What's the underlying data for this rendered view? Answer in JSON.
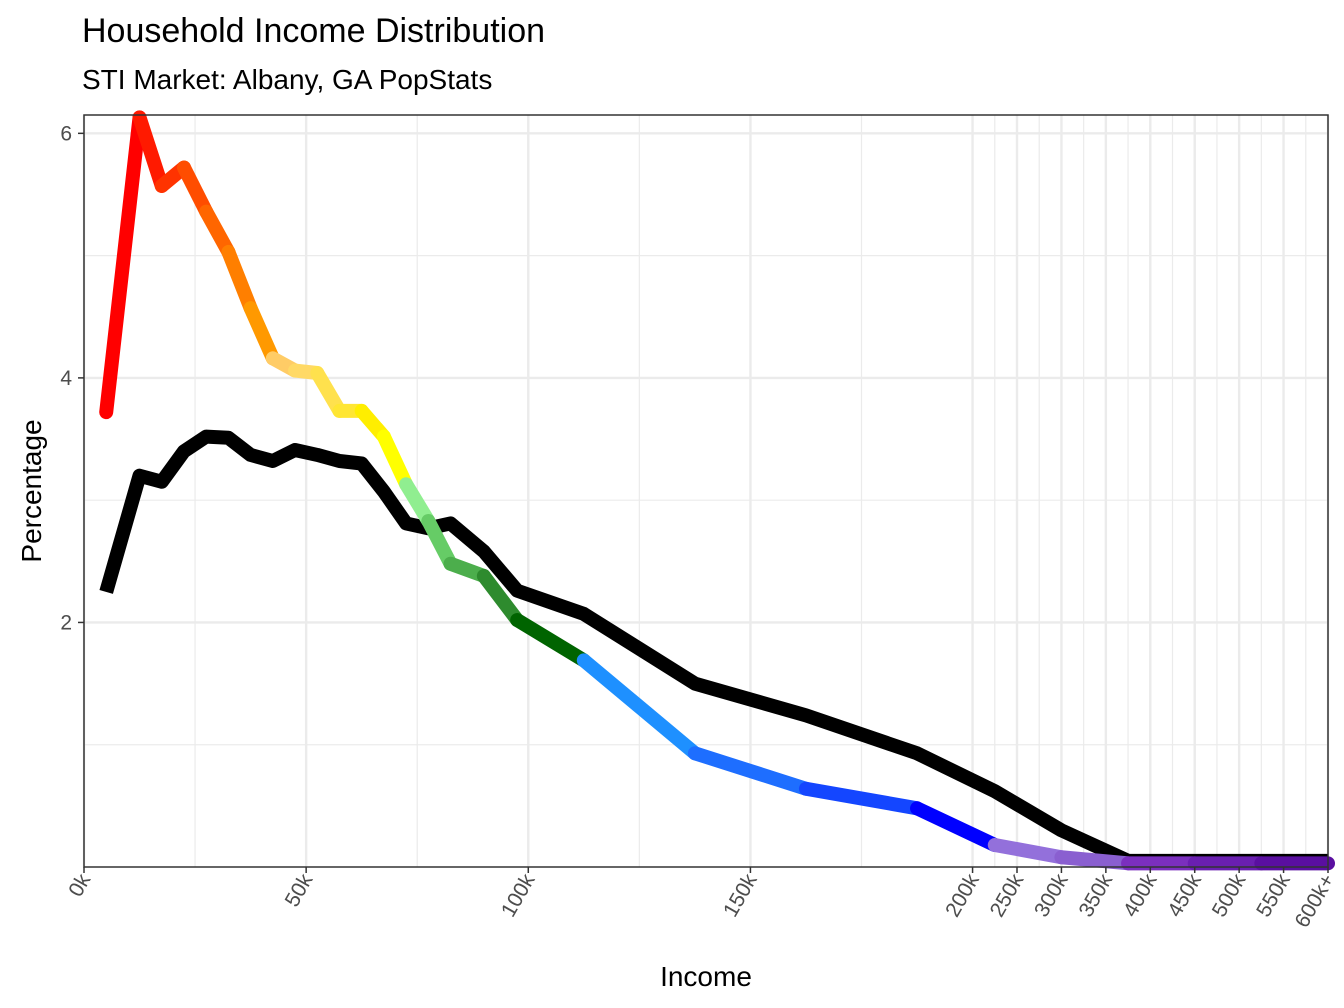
{
  "title": "Household Income Distribution",
  "subtitle": "STI Market: Albany, GA PopStats",
  "chart_data": {
    "type": "line",
    "title": "Household Income Distribution",
    "subtitle": "STI Market: Albany, GA PopStats",
    "xlabel": "Income",
    "ylabel": "Percentage",
    "ylim": [
      0,
      6.15
    ],
    "y_ticks": [
      2,
      4,
      6
    ],
    "x_ticks": [
      {
        "label": "0k",
        "pos": 0
      },
      {
        "label": "50k",
        "pos": 50
      },
      {
        "label": "100k",
        "pos": 100
      },
      {
        "label": "150k",
        "pos": 150
      },
      {
        "label": "200k",
        "pos": 200
      },
      {
        "label": "250k",
        "pos": 210
      },
      {
        "label": "300k",
        "pos": 220
      },
      {
        "label": "350k",
        "pos": 230
      },
      {
        "label": "400k",
        "pos": 240
      },
      {
        "label": "450k",
        "pos": 250
      },
      {
        "label": "500k",
        "pos": 260
      },
      {
        "label": "550k",
        "pos": 270
      },
      {
        "label": "600k+",
        "pos": 280
      }
    ],
    "grid": true,
    "legend": "none",
    "series": [
      {
        "line_color": "#000000",
        "points": [
          [
            5,
            2.25
          ],
          [
            12.5,
            3.2
          ],
          [
            17.5,
            3.15
          ],
          [
            22.5,
            3.4
          ],
          [
            27.5,
            3.52
          ],
          [
            32.5,
            3.51
          ],
          [
            37.5,
            3.37
          ],
          [
            42.5,
            3.32
          ],
          [
            47.5,
            3.41
          ],
          [
            52.5,
            3.37
          ],
          [
            57.5,
            3.32
          ],
          [
            62.5,
            3.3
          ],
          [
            67.5,
            3.07
          ],
          [
            72.5,
            2.81
          ],
          [
            77.5,
            2.77
          ],
          [
            82.5,
            2.81
          ],
          [
            90,
            2.58
          ],
          [
            97.5,
            2.26
          ],
          [
            112.5,
            2.07
          ],
          [
            137.5,
            1.5
          ],
          [
            162.5,
            1.24
          ],
          [
            187.5,
            0.93
          ],
          [
            205,
            0.62
          ],
          [
            220,
            0.3
          ],
          [
            235,
            0.05
          ],
          [
            250,
            0.05
          ],
          [
            265,
            0.05
          ],
          [
            280,
            0.05
          ]
        ]
      },
      {
        "segment_colors": [
          "#ff0000",
          "#ff1a00",
          "#ff3300",
          "#ff4d00",
          "#ff6600",
          "#ff7f00",
          "#ff9900",
          "#ffcc66",
          "#ffd966",
          "#ffe14d",
          "#ffe633",
          "#ffee00",
          "#ffff00",
          "#90ee90",
          "#66cc66",
          "#4cae4c",
          "#2e8b2e",
          "#006400",
          "#1e90ff",
          "#1e6eff",
          "#1446ff",
          "#0000ff",
          "#9370db",
          "#8a5fd0",
          "#7b2fbe",
          "#6a1fb0",
          "#5a0fa0"
        ],
        "points": [
          [
            5,
            3.72
          ],
          [
            12.5,
            6.13
          ],
          [
            17.5,
            5.57
          ],
          [
            22.5,
            5.72
          ],
          [
            27.5,
            5.36
          ],
          [
            32.5,
            5.03
          ],
          [
            37.5,
            4.57
          ],
          [
            42.5,
            4.16
          ],
          [
            47.5,
            4.06
          ],
          [
            52.5,
            4.04
          ],
          [
            57.5,
            3.73
          ],
          [
            62.5,
            3.73
          ],
          [
            67.5,
            3.52
          ],
          [
            72.5,
            3.13
          ],
          [
            77.5,
            2.83
          ],
          [
            82.5,
            2.48
          ],
          [
            90,
            2.38
          ],
          [
            97.5,
            2.02
          ],
          [
            112.5,
            1.69
          ],
          [
            137.5,
            0.93
          ],
          [
            162.5,
            0.64
          ],
          [
            187.5,
            0.48
          ],
          [
            205,
            0.18
          ],
          [
            220,
            0.08
          ],
          [
            235,
            0.03
          ],
          [
            250,
            0.03
          ],
          [
            265,
            0.03
          ],
          [
            280,
            0.03
          ]
        ]
      }
    ]
  }
}
